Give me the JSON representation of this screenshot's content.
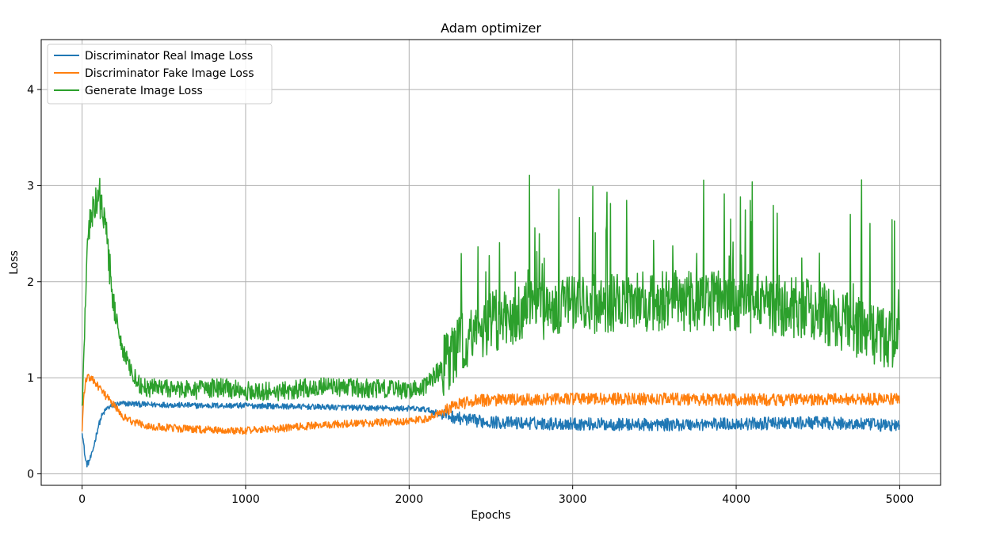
{
  "chart_data": {
    "type": "line",
    "title": "Adam optimizer",
    "xlabel": "Epochs",
    "ylabel": "Loss",
    "xlim": [
      -250,
      5250
    ],
    "ylim": [
      -0.12,
      4.52
    ],
    "xticks": [
      0,
      1000,
      2000,
      3000,
      4000,
      5000
    ],
    "yticks": [
      0,
      1,
      2,
      3,
      4
    ],
    "grid": true,
    "legend_position": "top-left",
    "series": [
      {
        "name": "Discriminator Real Image Loss",
        "color": "#1f77b4",
        "noise": 0.03,
        "x": [
          0,
          10,
          20,
          30,
          40,
          60,
          80,
          100,
          120,
          150,
          200,
          250,
          300,
          400,
          500,
          700,
          1000,
          1300,
          1600,
          1900,
          2000,
          2100,
          2200,
          2300,
          2400,
          2600,
          3000,
          3500,
          4000,
          4500,
          4700,
          5000
        ],
        "y": [
          0.45,
          0.3,
          0.15,
          0.1,
          0.12,
          0.2,
          0.35,
          0.5,
          0.6,
          0.68,
          0.72,
          0.73,
          0.73,
          0.72,
          0.72,
          0.71,
          0.71,
          0.7,
          0.69,
          0.68,
          0.68,
          0.67,
          0.62,
          0.58,
          0.55,
          0.53,
          0.52,
          0.51,
          0.52,
          0.53,
          0.52,
          0.5
        ]
      },
      {
        "name": "Discriminator Fake Image Loss",
        "color": "#ff7f0e",
        "noise": 0.04,
        "x": [
          0,
          10,
          20,
          30,
          50,
          80,
          100,
          150,
          200,
          250,
          300,
          400,
          500,
          700,
          1000,
          1200,
          1400,
          1600,
          1900,
          2000,
          2100,
          2200,
          2300,
          2400,
          2600,
          3000,
          3500,
          4000,
          4500,
          5000
        ],
        "y": [
          0.45,
          0.8,
          0.95,
          1.0,
          1.0,
          0.95,
          0.9,
          0.8,
          0.7,
          0.6,
          0.55,
          0.5,
          0.48,
          0.46,
          0.45,
          0.47,
          0.5,
          0.52,
          0.54,
          0.55,
          0.57,
          0.65,
          0.72,
          0.76,
          0.77,
          0.78,
          0.78,
          0.77,
          0.77,
          0.78
        ]
      },
      {
        "name": "Generate Image Loss",
        "color": "#2ca02c",
        "noise": 0.1,
        "x": [
          0,
          10,
          20,
          30,
          50,
          70,
          90,
          110,
          130,
          150,
          180,
          200,
          250,
          300,
          350,
          400,
          500,
          700,
          850,
          1000,
          1200,
          1400,
          1600,
          1900,
          2000,
          2100,
          2200,
          2300,
          2400,
          2600,
          3000,
          3500,
          4000,
          4500,
          4700,
          5000
        ],
        "y": [
          0.65,
          1.2,
          1.8,
          2.3,
          2.6,
          2.8,
          2.9,
          2.85,
          2.7,
          2.5,
          2.0,
          1.7,
          1.3,
          1.05,
          0.93,
          0.9,
          0.88,
          0.87,
          0.9,
          0.86,
          0.86,
          0.9,
          0.9,
          0.88,
          0.88,
          0.92,
          1.1,
          1.3,
          1.5,
          1.65,
          1.75,
          1.8,
          1.8,
          1.7,
          1.55,
          1.35
        ]
      }
    ]
  }
}
